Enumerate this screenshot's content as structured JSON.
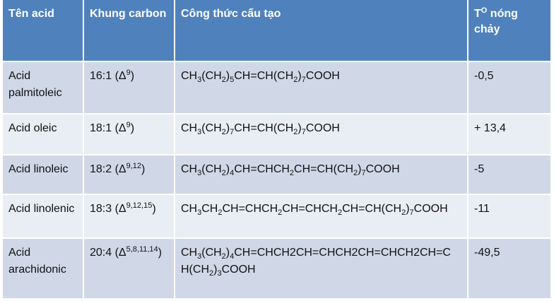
{
  "headers": [
    "Tên acid",
    "Khung carbon",
    "Công thức cấu tạo",
    "T",
    "O",
    " nóng chảy"
  ],
  "rows": [
    {
      "name": "Acid palmitoleic",
      "carbon_base": "16:1 (Δ",
      "carbon_sup": "9",
      "carbon_close": ")",
      "formula": [
        [
          "CH",
          ""
        ],
        [
          "3",
          "sub"
        ],
        [
          "(CH",
          ""
        ],
        [
          "2",
          "sub"
        ],
        [
          ")",
          ""
        ],
        [
          "5",
          "sub"
        ],
        [
          "CH=CH(CH",
          ""
        ],
        [
          "2",
          "sub"
        ],
        [
          ")",
          ""
        ],
        [
          "7",
          "sub"
        ],
        [
          "COOH",
          ""
        ]
      ],
      "melting": "-0,5"
    },
    {
      "name": "Acid oleic",
      "carbon_base": "18:1 (Δ",
      "carbon_sup": "9",
      "carbon_close": ")",
      "formula": [
        [
          "CH",
          ""
        ],
        [
          "3",
          "sub"
        ],
        [
          "(CH",
          ""
        ],
        [
          "2",
          "sub"
        ],
        [
          ")",
          ""
        ],
        [
          "7",
          "sub"
        ],
        [
          "CH=CH(CH",
          ""
        ],
        [
          "2",
          "sub"
        ],
        [
          ")",
          ""
        ],
        [
          "7",
          "sub"
        ],
        [
          "COOH",
          ""
        ]
      ],
      "melting": "+ 13,4"
    },
    {
      "name": "Acid linoleic",
      "carbon_base": "18:2 (Δ",
      "carbon_sup": "9,12",
      "carbon_close": ")",
      "formula": [
        [
          "CH",
          ""
        ],
        [
          "3",
          "sub"
        ],
        [
          "(CH",
          ""
        ],
        [
          "2",
          "sub"
        ],
        [
          ")",
          ""
        ],
        [
          "4",
          "sub"
        ],
        [
          "CH=CHCH",
          ""
        ],
        [
          "2",
          "sub"
        ],
        [
          "CH=CH(CH",
          ""
        ],
        [
          "2",
          "sub"
        ],
        [
          ")",
          ""
        ],
        [
          "7",
          "sub"
        ],
        [
          "COOH",
          ""
        ]
      ],
      "melting": "-5"
    },
    {
      "name": "Acid linolenic",
      "carbon_base": "18:3 (Δ",
      "carbon_sup": "9,12,15",
      "carbon_close": ")",
      "formula": [
        [
          "CH",
          ""
        ],
        [
          "3",
          "sub"
        ],
        [
          "CH",
          ""
        ],
        [
          "2",
          "sub"
        ],
        [
          "CH=CHCH",
          ""
        ],
        [
          "2",
          "sub"
        ],
        [
          "CH=CHCH",
          ""
        ],
        [
          "2",
          "sub"
        ],
        [
          "CH=CH(CH",
          ""
        ],
        [
          "2",
          "sub"
        ],
        [
          ")",
          ""
        ],
        [
          "7",
          "sub"
        ],
        [
          "COOH",
          ""
        ]
      ],
      "melting": "-11"
    },
    {
      "name": "Acid arachidonic",
      "carbon_base": "20:4 (Δ",
      "carbon_sup": "5,8,11,14",
      "carbon_close": ")",
      "formula": [
        [
          "CH",
          ""
        ],
        [
          "3",
          "sub"
        ],
        [
          "(CH",
          ""
        ],
        [
          "2",
          "sub"
        ],
        [
          ")",
          ""
        ],
        [
          "4",
          "sub"
        ],
        [
          "CH=CHCH2CH=CHCH2CH=CHCH2CH=C H(CH",
          ""
        ],
        [
          "2",
          "sub"
        ],
        [
          ")",
          ""
        ],
        [
          "3",
          "sub"
        ],
        [
          "COOH",
          ""
        ]
      ],
      "melting": "-49,5"
    }
  ]
}
